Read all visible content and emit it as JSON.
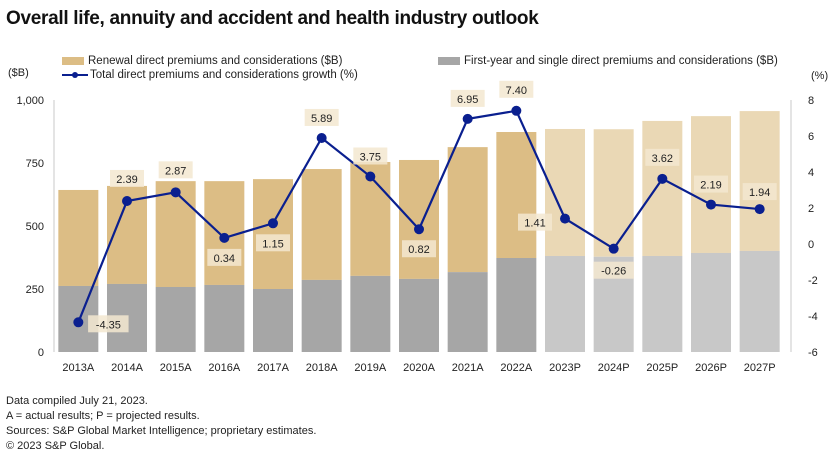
{
  "title": "Overall life, annuity and accident and health industry outlook",
  "legend": {
    "renewal": "Renewal direct premiums and considerations ($B)",
    "first_year": "First-year and single direct premiums and considerations ($B)",
    "growth": "Total direct premiums and considerations growth (%)"
  },
  "left_axis_unit": "($B)",
  "right_axis_unit": "(%)",
  "colors": {
    "renewal_actual": "#dcbd85",
    "renewal_projected": "#ead8b5",
    "first_year_actual": "#a6a6a6",
    "first_year_projected": "#c8c8c8",
    "growth_line": "#0a1f8f",
    "label_bg": "#f3e7d0"
  },
  "footnotes": [
    "Data compiled July 21, 2023.",
    "A = actual results; P = projected results.",
    "Sources: S&P Global Market Intelligence; proprietary estimates.",
    "© 2023 S&P Global."
  ],
  "chart_data": {
    "type": "bar",
    "title": "Overall life, annuity and accident and health industry outlook",
    "categories": [
      "2013A",
      "2014A",
      "2015A",
      "2016A",
      "2017A",
      "2018A",
      "2019A",
      "2020A",
      "2021A",
      "2022A",
      "2023P",
      "2024P",
      "2025P",
      "2026P",
      "2027P"
    ],
    "projected_flags": [
      false,
      false,
      false,
      false,
      false,
      false,
      false,
      false,
      false,
      false,
      true,
      true,
      true,
      true,
      true
    ],
    "series": [
      {
        "name": "First-year and single direct premiums and considerations ($B)",
        "type": "stacked-bar",
        "axis": "left",
        "values": [
          262,
          270,
          258,
          266,
          250,
          286,
          302,
          290,
          317,
          373,
          381,
          378,
          381,
          393,
          401
        ]
      },
      {
        "name": "Renewal direct premiums and considerations ($B)",
        "type": "stacked-bar",
        "axis": "left",
        "values": [
          381,
          389,
          420,
          412,
          436,
          440,
          452,
          472,
          496,
          500,
          504,
          506,
          536,
          543,
          555
        ]
      },
      {
        "name": "Total direct premiums and considerations growth (%)",
        "type": "line",
        "axis": "right",
        "values": [
          -4.35,
          2.39,
          2.87,
          0.34,
          1.15,
          5.89,
          3.75,
          0.82,
          6.95,
          7.4,
          1.41,
          -0.26,
          3.62,
          2.19,
          1.94
        ],
        "labels": [
          "-4.35",
          "2.39",
          "2.87",
          "0.34",
          "1.15",
          "5.89",
          "3.75",
          "0.82",
          "6.95",
          "7.40",
          "1.41",
          "-0.26",
          "3.62",
          "2.19",
          "1.94"
        ]
      }
    ],
    "ylabel_left": "($B)",
    "ylabel_right": "(%)",
    "ylim_left": [
      0,
      1000
    ],
    "yticks_left": [
      "0",
      "250",
      "500",
      "750",
      "1,000"
    ],
    "ylim_right": [
      -6,
      8
    ],
    "yticks_right": [
      "-6",
      "-4",
      "-2",
      "0",
      "2",
      "4",
      "6",
      "8"
    ],
    "grid": false,
    "legend_position": "top"
  }
}
